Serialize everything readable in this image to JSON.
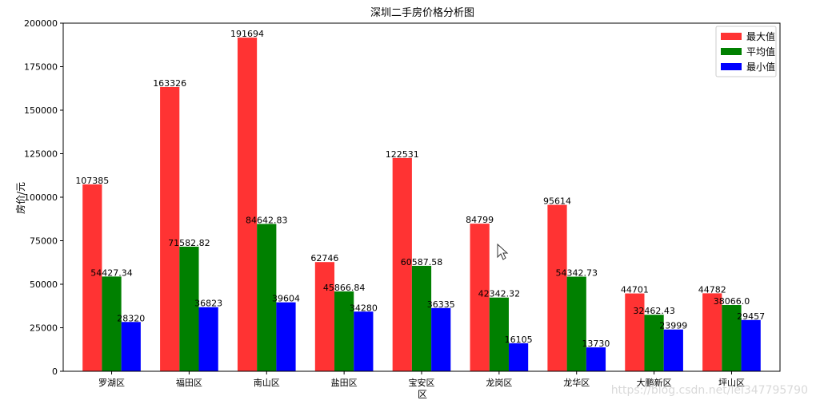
{
  "chart_data": {
    "type": "bar",
    "title": "深圳二手房价格分析图",
    "xlabel": "区",
    "ylabel": "房价/元",
    "ylim": [
      0,
      200000
    ],
    "yticks": [
      0,
      25000,
      50000,
      75000,
      100000,
      125000,
      150000,
      175000,
      200000
    ],
    "categories": [
      "罗湖区",
      "福田区",
      "南山区",
      "盐田区",
      "宝安区",
      "龙岗区",
      "龙华区",
      "大鹏新区",
      "坪山区"
    ],
    "series": [
      {
        "name": "最大值",
        "color": "#ff3333",
        "values": [
          107385,
          163326,
          191694,
          62746,
          122531,
          84799,
          95614,
          44701,
          44782
        ],
        "labels": [
          "107385",
          "163326",
          "191694",
          "62746",
          "122531",
          "84799",
          "95614",
          "44701",
          "44782"
        ]
      },
      {
        "name": "平均值",
        "color": "#008000",
        "values": [
          54427.34,
          71582.82,
          84642.83,
          45866.84,
          60587.58,
          42342.32,
          54342.73,
          32462.43,
          38066.0
        ],
        "labels": [
          "54427.34",
          "71582.82",
          "84642.83",
          "45866.84",
          "60587.58",
          "42342.32",
          "54342.73",
          "32462.43",
          "38066.0"
        ]
      },
      {
        "name": "最小值",
        "color": "#0000ff",
        "values": [
          28320,
          36823,
          39604,
          34280,
          36335,
          16105,
          13730,
          23999,
          29457
        ],
        "labels": [
          "28320",
          "36823",
          "39604",
          "34280",
          "36335",
          "16105",
          "13730",
          "23999",
          "29457"
        ]
      }
    ],
    "legend_position": "top-right",
    "grid": false
  },
  "watermark": "https://blog.csdn.net/lei347795790"
}
